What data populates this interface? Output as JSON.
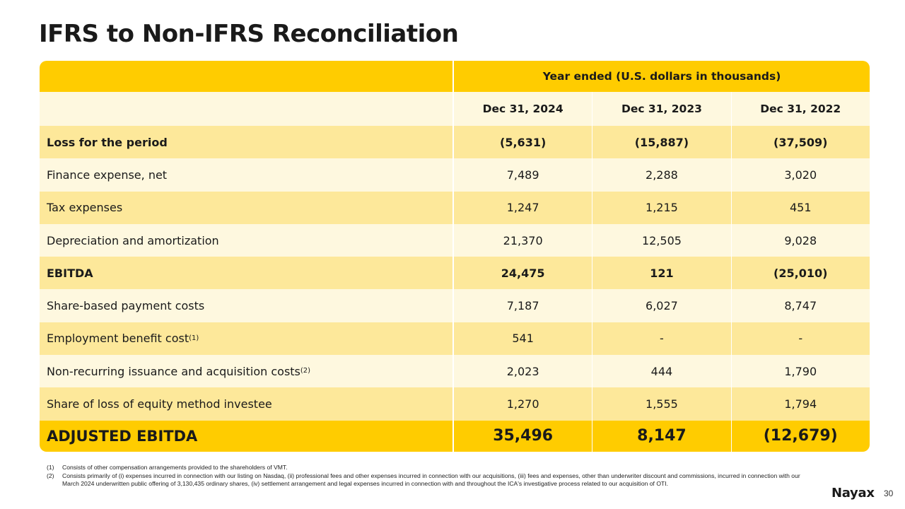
{
  "title": "IFRS to Non-IFRS Reconciliation",
  "table": {
    "group_header": "Year ended (U.S. dollars in thousands)",
    "columns": [
      "Dec 31, 2024",
      "Dec 31, 2023",
      "Dec 31, 2022"
    ],
    "rows": [
      {
        "label": "Loss for the period",
        "sup": "",
        "values": [
          "(5,631)",
          "(15,887)",
          "(37,509)"
        ],
        "bold": true
      },
      {
        "label": "Finance expense, net",
        "sup": "",
        "values": [
          "7,489",
          "2,288",
          "3,020"
        ],
        "bold": false
      },
      {
        "label": "Tax expenses",
        "sup": "",
        "values": [
          "1,247",
          "1,215",
          "451"
        ],
        "bold": false
      },
      {
        "label": "Depreciation and amortization",
        "sup": "",
        "values": [
          "21,370",
          "12,505",
          "9,028"
        ],
        "bold": false
      },
      {
        "label": "EBITDA",
        "sup": "",
        "values": [
          "24,475",
          "121",
          "(25,010)"
        ],
        "bold": true
      },
      {
        "label": "Share-based payment costs",
        "sup": "",
        "values": [
          "7,187",
          "6,027",
          "8,747"
        ],
        "bold": false
      },
      {
        "label": "Employment benefit cost",
        "sup": "(1)",
        "values": [
          "541",
          "-",
          "-"
        ],
        "bold": false
      },
      {
        "label": "Non-recurring issuance and acquisition costs",
        "sup": "(2)",
        "values": [
          "2,023",
          "444",
          "1,790"
        ],
        "bold": false
      },
      {
        "label": "Share of loss of equity method investee",
        "sup": "",
        "values": [
          "1,270",
          "1,555",
          "1,794"
        ],
        "bold": false
      }
    ],
    "total": {
      "label": "ADJUSTED EBITDA",
      "values": [
        "35,496",
        "8,147",
        "(12,679)"
      ]
    }
  },
  "footnotes": [
    {
      "num": "(1)",
      "text": "Consists of other compensation arrangements provided to the shareholders of VMT."
    },
    {
      "num": "(2)",
      "text": "Consists primarily of (i) expenses incurred in connection with our listing on Nasdaq, (ii) professional fees and other expenses incurred in connection with our acquisitions, (iii) fees and expenses, other than underwriter discount and commissions, incurred in connection with our March 2024 underwritten public offering of 3,130,435 ordinary shares, (iv) settlement arrangement and legal expenses incurred in connection with and throughout the ICA's investigative process related to our acquisition of OTI."
    }
  ],
  "logo": "Nayax",
  "page_number": "30",
  "colors": {
    "accent": "#ffcc00",
    "row_light": "#fef8df",
    "row_mid": "#fde89a"
  }
}
